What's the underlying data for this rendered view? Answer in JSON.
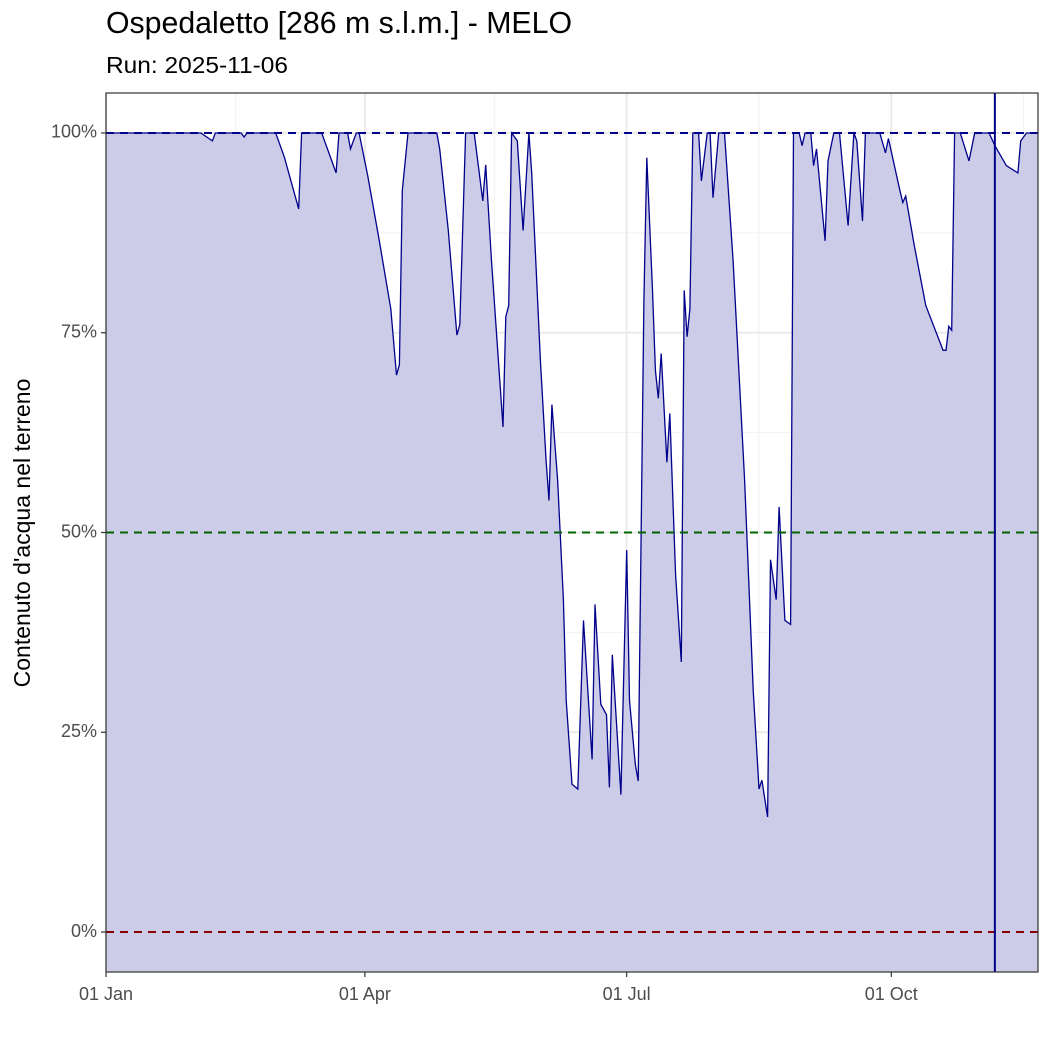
{
  "chart_data": {
    "type": "area",
    "title": "Ospedaletto [286 m s.l.m.] - MELO",
    "subtitle": "Run: 2025-11-06",
    "y_label": "Contenuto d'acqua nel terreno",
    "x": [
      "01 Jan",
      "03 Feb",
      "07 Feb",
      "08 Feb",
      "17 Feb",
      "18 Feb",
      "19 Feb",
      "01 Mar",
      "04 Mar",
      "09 Mar",
      "10 Mar",
      "17 Mar",
      "22 Mar",
      "23 Mar",
      "26 Mar",
      "27 Mar",
      "29 Mar",
      "30 Mar",
      "02 Apr",
      "06 Apr",
      "10 Apr",
      "12 Apr",
      "13 Apr",
      "14 Apr",
      "16 Apr",
      "26 Apr",
      "27 Apr",
      "30 Apr",
      "03 May",
      "04 May",
      "06 May",
      "09 May",
      "12 May",
      "13 May",
      "15 May",
      "19 May",
      "20 May",
      "21 May",
      "22 May",
      "24 May",
      "26 May",
      "28 May",
      "29 May",
      "01 Jun",
      "03 Jun",
      "04 Jun",
      "05 Jun",
      "07 Jun",
      "09 Jun",
      "10 Jun",
      "12 Jun",
      "14 Jun",
      "16 Jun",
      "19 Jun",
      "20 Jun",
      "22 Jun",
      "24 Jun",
      "25 Jun",
      "26 Jun",
      "29 Jun",
      "01 Jul",
      "02 Jul",
      "04 Jul",
      "05 Jul",
      "07 Jul",
      "08 Jul",
      "10 Jul",
      "11 Jul",
      "12 Jul",
      "13 Jul",
      "15 Jul",
      "16 Jul",
      "18 Jul",
      "20 Jul",
      "21 Jul",
      "22 Jul",
      "23 Jul",
      "24 Jul",
      "26 Jul",
      "27 Jul",
      "29 Jul",
      "30 Jul",
      "31 Jul",
      "02 Aug",
      "04 Aug",
      "07 Aug",
      "11 Aug",
      "14 Aug",
      "16 Aug",
      "17 Aug",
      "19 Aug",
      "20 Aug",
      "22 Aug",
      "23 Aug",
      "25 Aug",
      "27 Aug",
      "28 Aug",
      "30 Aug",
      "31 Aug",
      "01 Sep",
      "03 Sep",
      "04 Sep",
      "05 Sep",
      "08 Sep",
      "09 Sep",
      "11 Sep",
      "13 Sep",
      "16 Sep",
      "18 Sep",
      "19 Sep",
      "21 Sep",
      "22 Sep",
      "27 Sep",
      "29 Sep",
      "30 Sep",
      "04 Oct",
      "05 Oct",
      "06 Oct",
      "09 Oct",
      "13 Oct",
      "19 Oct",
      "20 Oct",
      "21 Oct",
      "22 Oct",
      "23 Oct",
      "25 Oct",
      "28 Oct",
      "30 Oct",
      "04 Nov",
      "06 Nov",
      "10 Nov",
      "14 Nov",
      "15 Nov",
      "17 Nov",
      "21 Nov"
    ],
    "series": [
      {
        "name": "MELO",
        "color": "#00008b",
        "fill": "#ccccE8",
        "values": [
          100,
          100,
          99,
          100,
          100,
          99.5,
          100,
          100,
          97,
          90.5,
          100,
          100,
          95,
          100,
          100,
          98,
          100,
          100,
          94.6,
          86.5,
          78,
          69.7,
          71,
          92.8,
          100,
          100,
          98,
          87.8,
          74.7,
          76,
          100,
          100,
          91.5,
          96,
          84,
          63.2,
          77,
          78.4,
          100,
          99,
          87.8,
          100,
          95,
          71.5,
          59,
          54,
          66,
          56.6,
          41.6,
          29,
          18.5,
          17.9,
          39,
          21.6,
          41,
          28.5,
          27.2,
          18.1,
          34.7,
          17.2,
          47.8,
          29,
          21,
          18.9,
          79,
          96.9,
          80.3,
          70.3,
          66.8,
          72.4,
          58.8,
          64.9,
          44.7,
          33.8,
          80.3,
          74.5,
          78,
          100,
          100,
          94,
          100,
          100,
          91.9,
          100,
          100,
          84,
          56.6,
          30.3,
          17.9,
          19,
          14.4,
          46.6,
          41.6,
          53.2,
          39,
          38.5,
          100,
          100,
          98.4,
          100,
          100,
          95.9,
          98,
          86.5,
          96.5,
          100,
          100,
          88.4,
          100,
          99,
          89,
          100,
          100,
          97.5,
          99.3,
          92.8,
          91.3,
          92.1,
          85.9,
          78.4,
          72.8,
          72.8,
          75.8,
          75.3,
          100,
          100,
          96.5,
          100,
          100,
          98.4,
          95.9,
          95,
          99,
          100,
          100
        ]
      }
    ],
    "xlim": [
      "01 Jan",
      "21 Nov"
    ],
    "xticks": [
      "01 Jan",
      "01 Apr",
      "01 Jul",
      "01 Oct"
    ],
    "xminor": [
      "15 Feb",
      "16 May",
      "16 Aug",
      "16 Nov"
    ],
    "ylim": [
      -5,
      105
    ],
    "yticks": [
      {
        "value": 0,
        "label": "0%"
      },
      {
        "value": 25,
        "label": "25%"
      },
      {
        "value": 50,
        "label": "50%"
      },
      {
        "value": 75,
        "label": "75%"
      },
      {
        "value": 100,
        "label": "100%"
      }
    ],
    "yminor": [
      12.5,
      37.5,
      62.5,
      87.5
    ],
    "grid": true,
    "reference_lines": [
      {
        "value": 100,
        "color": "#00008b"
      },
      {
        "value": 50,
        "color": "#006400"
      },
      {
        "value": 0,
        "color": "#8b0000"
      }
    ],
    "vline": {
      "x": "06 Nov",
      "color": "#00008b"
    }
  }
}
